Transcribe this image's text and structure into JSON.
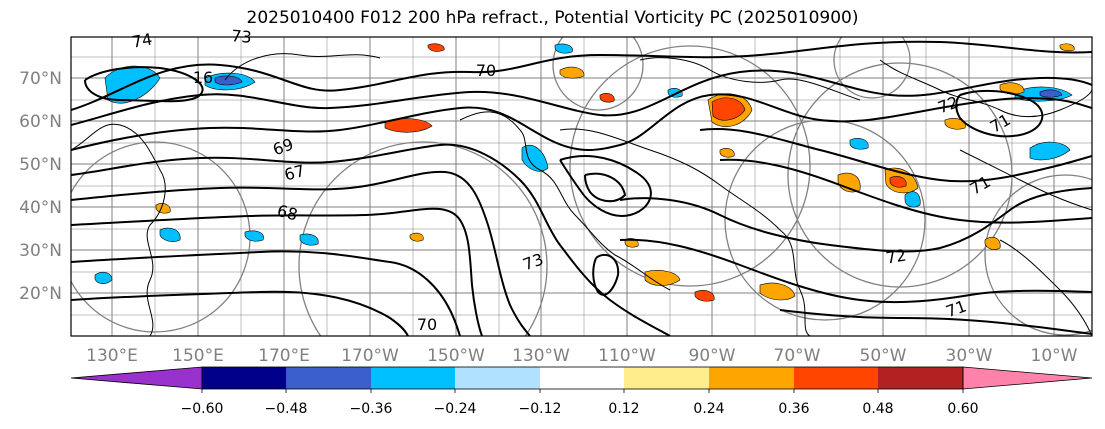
{
  "title": "2025010400 F012 200 hPa refract., Potential Vorticity PC (2025010900)",
  "latitude_labels": [
    "70°N",
    "60°N",
    "50°N",
    "40°N",
    "30°N",
    "20°N"
  ],
  "longitude_labels": [
    "130°E",
    "150°E",
    "170°E",
    "170°W",
    "150°W",
    "130°W",
    "110°W",
    "90°W",
    "70°W",
    "50°W",
    "30°W",
    "10°W"
  ],
  "contour_labels": [
    "74",
    "73",
    "70",
    "16",
    "69",
    "67",
    "68",
    "72",
    "71",
    "73",
    "70",
    "71",
    "71",
    "72"
  ],
  "colorbar": {
    "tick_labels": [
      "−0.60",
      "−0.48",
      "−0.36",
      "−0.24",
      "−0.12",
      "0.12",
      "0.24",
      "0.36",
      "0.48",
      "0.60"
    ],
    "colors": [
      "#9932cc",
      "#00008b",
      "#3a5fcd",
      "#00bfff",
      "#b0e2ff",
      "#ffffff",
      "#ffec8b",
      "#ffa500",
      "#ff4500",
      "#b22222",
      "#ff82ab",
      "#ff82ab"
    ]
  },
  "map_colors": {
    "positive_fill": "#ffa500",
    "positive_strong": "#ff4500",
    "negative_fill": "#00bfff",
    "negative_strong": "#3a5fcd",
    "contour": "#000000",
    "range_rings": "#808080",
    "grid": "#808080"
  }
}
